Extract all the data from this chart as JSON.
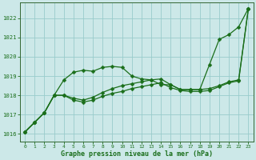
{
  "xlabel": "Graphe pression niveau de la mer (hPa)",
  "bg_color": "#cce8e8",
  "grid_color": "#99cccc",
  "line_color": "#1a6e1a",
  "markersize": 2.5,
  "ylim": [
    1015.6,
    1022.8
  ],
  "xlim": [
    -0.5,
    23.5
  ],
  "yticks": [
    1016,
    1017,
    1018,
    1019,
    1020,
    1021,
    1022
  ],
  "xticks": [
    0,
    1,
    2,
    3,
    4,
    5,
    6,
    7,
    8,
    9,
    10,
    11,
    12,
    13,
    14,
    15,
    16,
    17,
    18,
    19,
    20,
    21,
    22,
    23
  ],
  "series": [
    [
      1016.1,
      1016.6,
      1017.1,
      1018.0,
      1018.8,
      1019.2,
      1019.3,
      1019.25,
      1019.45,
      1019.5,
      1019.45,
      1019.0,
      1018.85,
      1018.8,
      1018.55,
      1018.55,
      1018.3,
      1018.3,
      1018.3,
      1019.6,
      1020.9,
      1021.15,
      1021.55,
      1022.5
    ],
    [
      1016.1,
      1016.6,
      1017.1,
      1018.0,
      1018.0,
      1017.85,
      1017.75,
      1017.9,
      1018.15,
      1018.35,
      1018.5,
      1018.6,
      1018.7,
      1018.8,
      1018.85,
      1018.55,
      1018.3,
      1018.3,
      1018.3,
      1018.35,
      1018.5,
      1018.7,
      1018.8,
      1022.5
    ],
    [
      1016.1,
      1016.6,
      1017.1,
      1018.0,
      1018.0,
      1017.75,
      1017.65,
      1017.75,
      1017.95,
      1018.1,
      1018.2,
      1018.35,
      1018.45,
      1018.55,
      1018.65,
      1018.4,
      1018.25,
      1018.2,
      1018.2,
      1018.25,
      1018.45,
      1018.65,
      1018.75,
      1022.5
    ]
  ]
}
